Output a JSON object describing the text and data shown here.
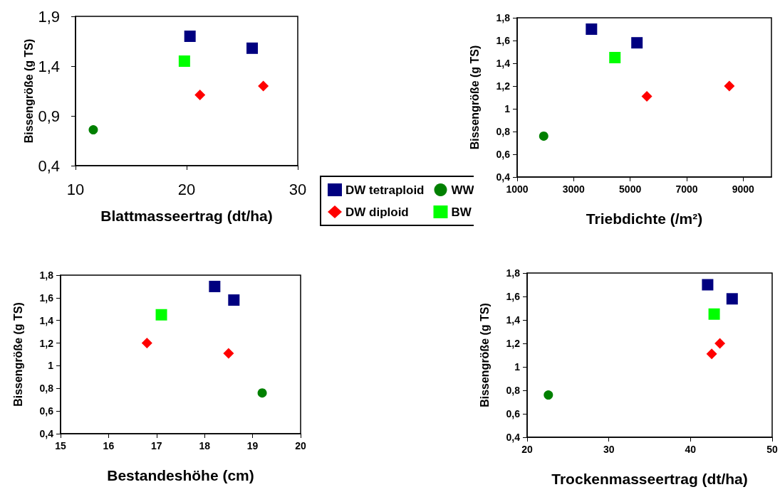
{
  "chart_data": [
    {
      "type": "scatter",
      "xlabel": "Blattmasseertrag (dt/ha)",
      "ylabel": "Bissengröße (g TS)",
      "xlim": [
        10,
        30
      ],
      "xticks": [
        10,
        20,
        30
      ],
      "ylim": [
        0.4,
        1.9
      ],
      "yticks": [
        {
          "value": 0.4,
          "label": "0,4"
        },
        {
          "value": 0.9,
          "label": "0,9"
        },
        {
          "value": 1.4,
          "label": "1,4"
        },
        {
          "value": 1.9,
          "label": "1,9"
        }
      ],
      "grid": false,
      "legend": "right",
      "series": [
        {
          "name": "DW tetraploid",
          "color": "#000080",
          "marker": "square",
          "x": [
            20.3,
            25.9
          ],
          "values": [
            1.7,
            1.58
          ]
        },
        {
          "name": "DW diploid",
          "color": "#ff0000",
          "marker": "diamond",
          "x": [
            21.2,
            26.9
          ],
          "values": [
            1.11,
            1.2
          ]
        },
        {
          "name": "WW",
          "color": "#008000",
          "marker": "circle",
          "x": [
            11.6
          ],
          "values": [
            0.76
          ]
        },
        {
          "name": "BW",
          "color": "#00ff00",
          "marker": "square",
          "x": [
            19.8
          ],
          "values": [
            1.45
          ]
        }
      ]
    },
    {
      "type": "scatter",
      "xlabel": "Triebdichte (/m²)",
      "ylabel": "Bissengröße (g TS)",
      "xlim": [
        1000,
        10000
      ],
      "xticks": [
        1000,
        3000,
        5000,
        7000,
        9000
      ],
      "ylim": [
        0.4,
        1.8
      ],
      "yticks": [
        {
          "value": 0.4,
          "label": "0,4"
        },
        {
          "value": 0.6,
          "label": "0,6"
        },
        {
          "value": 0.8,
          "label": "0,8"
        },
        {
          "value": 1,
          "label": "1"
        },
        {
          "value": 1.2,
          "label": "1,2"
        },
        {
          "value": 1.4,
          "label": "1,4"
        },
        {
          "value": 1.6,
          "label": "1,6"
        },
        {
          "value": 1.8,
          "label": "1,8"
        }
      ],
      "grid": false,
      "series": [
        {
          "color": "#000080",
          "marker": "square",
          "x": [
            3630,
            5240
          ],
          "values": [
            1.7,
            1.58
          ]
        },
        {
          "color": "#ff0000",
          "marker": "diamond",
          "x": [
            5590,
            8510
          ],
          "values": [
            1.11,
            1.2
          ]
        },
        {
          "color": "#008000",
          "marker": "circle",
          "x": [
            1940
          ],
          "values": [
            0.76
          ]
        },
        {
          "color": "#00ff00",
          "marker": "square",
          "x": [
            4460
          ],
          "values": [
            1.45
          ]
        }
      ]
    },
    {
      "type": "scatter",
      "xlabel": "Bestandeshöhe (cm)",
      "ylabel": "Bissengröße (g TS)",
      "xlim": [
        15,
        20
      ],
      "xticks": [
        15,
        16,
        17,
        18,
        19,
        20
      ],
      "ylim": [
        0.4,
        1.8
      ],
      "yticks": [
        {
          "value": 0.4,
          "label": "0,4"
        },
        {
          "value": 0.6,
          "label": "0,6"
        },
        {
          "value": 0.8,
          "label": "0,8"
        },
        {
          "value": 1,
          "label": "1"
        },
        {
          "value": 1.2,
          "label": "1,2"
        },
        {
          "value": 1.4,
          "label": "1,4"
        },
        {
          "value": 1.6,
          "label": "1,6"
        },
        {
          "value": 1.8,
          "label": "1,8"
        }
      ],
      "grid": false,
      "series": [
        {
          "color": "#000080",
          "marker": "square",
          "x": [
            18.21,
            18.61
          ],
          "values": [
            1.7,
            1.58
          ]
        },
        {
          "color": "#ff0000",
          "marker": "diamond",
          "x": [
            18.5,
            16.8
          ],
          "values": [
            1.11,
            1.2
          ]
        },
        {
          "color": "#008000",
          "marker": "circle",
          "x": [
            19.2
          ],
          "values": [
            0.76
          ]
        },
        {
          "color": "#00ff00",
          "marker": "square",
          "x": [
            17.1
          ],
          "values": [
            1.45
          ]
        }
      ]
    },
    {
      "type": "scatter",
      "xlabel": "Trockenmasseertrag (dt/ha)",
      "ylabel": "Bissengröße (g TS)",
      "xlim": [
        20,
        50
      ],
      "xticks": [
        20,
        30,
        40,
        50
      ],
      "ylim": [
        0.4,
        1.8
      ],
      "yticks": [
        {
          "value": 0.4,
          "label": "0,4"
        },
        {
          "value": 0.6,
          "label": "0,6"
        },
        {
          "value": 0.8,
          "label": "0,8"
        },
        {
          "value": 1,
          "label": "1"
        },
        {
          "value": 1.2,
          "label": "1,2"
        },
        {
          "value": 1.4,
          "label": "1,4"
        },
        {
          "value": 1.6,
          "label": "1,6"
        },
        {
          "value": 1.8,
          "label": "1,8"
        }
      ],
      "grid": false,
      "series": [
        {
          "color": "#000080",
          "marker": "square",
          "x": [
            42.1,
            45.1
          ],
          "values": [
            1.7,
            1.58
          ]
        },
        {
          "color": "#ff0000",
          "marker": "diamond",
          "x": [
            42.6,
            43.6
          ],
          "values": [
            1.11,
            1.2
          ]
        },
        {
          "color": "#008000",
          "marker": "circle",
          "x": [
            22.6
          ],
          "values": [
            0.76
          ]
        },
        {
          "color": "#00ff00",
          "marker": "square",
          "x": [
            42.9
          ],
          "values": [
            1.45
          ]
        }
      ]
    }
  ]
}
